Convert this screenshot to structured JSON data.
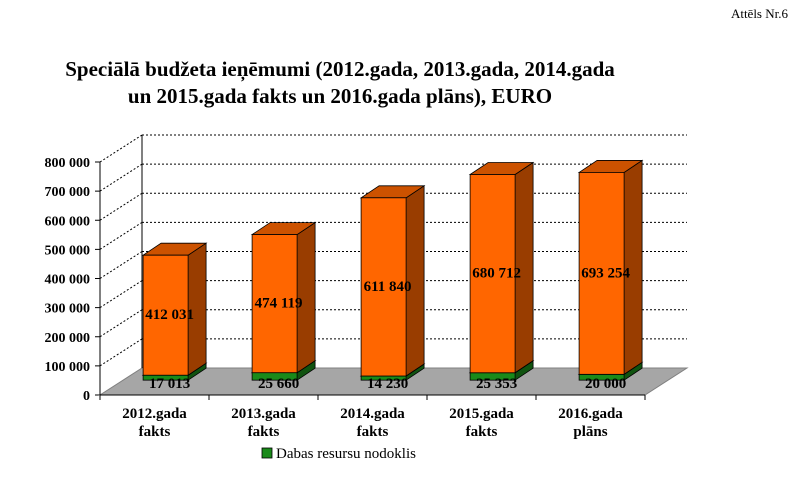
{
  "figure_label": "Attēls Nr.6",
  "chart_data": {
    "type": "bar",
    "title": "Speciālā budžeta ieņēmumi (2012.gada, 2013.gada, 2014.gada un 2015.gada fakts un 2016.gada plāns), EURO",
    "categories": [
      [
        "2012.gada",
        "fakts"
      ],
      [
        "2013.gada",
        "fakts"
      ],
      [
        "2014.gada",
        "fakts"
      ],
      [
        "2015.gada",
        "fakts"
      ],
      [
        "2016.gada",
        "plāns"
      ]
    ],
    "series": [
      {
        "name": "Dabas resursu nodoklis",
        "values": [
          17013,
          25660,
          14230,
          25353,
          20000
        ],
        "labels": [
          "17 013",
          "25 660",
          "14 230",
          "25 353",
          "20 000"
        ],
        "color": "#1a8a1a"
      },
      {
        "values": [
          412031,
          474119,
          611840,
          680712,
          693254
        ],
        "labels": [
          "412 031",
          "474 119",
          "611 840",
          "680 712",
          "693 254"
        ],
        "color": "#ff6600"
      }
    ],
    "stacked": true,
    "ylim": [
      0,
      800000
    ],
    "yticks": [
      0,
      100000,
      200000,
      300000,
      400000,
      500000,
      600000,
      700000,
      800000
    ],
    "ytick_labels": [
      "0",
      "100 000",
      "200 000",
      "300 000",
      "400 000",
      "500 000",
      "600 000",
      "700 000",
      "800 000"
    ],
    "grid": true,
    "legend": "bottom",
    "legend_entries": [
      "Dabas resursu nodoklis"
    ]
  }
}
